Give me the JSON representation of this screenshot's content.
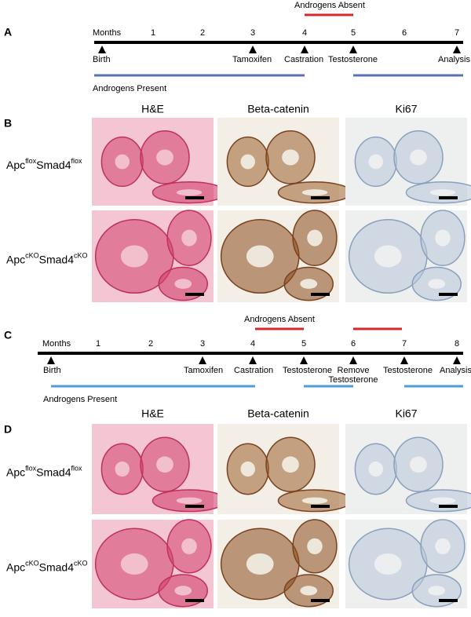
{
  "panels": {
    "a": {
      "label": "A",
      "annotation": "Androgens Absent",
      "axis_label": "Months",
      "months": [
        "1",
        "2",
        "3",
        "4",
        "5",
        "6",
        "7"
      ],
      "events": [
        "Birth",
        "Tamoxifen",
        "Castration",
        "Testosterone",
        "Analysis"
      ],
      "footer": "Androgens Present"
    },
    "b": {
      "label": "B",
      "columns": [
        "H&E",
        "Beta-catenin",
        "Ki67"
      ],
      "rows": [
        {
          "gene1": "Apc",
          "sup1": "flox",
          "gene2": "Smad4",
          "sup2": "flox"
        },
        {
          "gene1": "Apc",
          "sup1": "cKO",
          "gene2": "Smad4",
          "sup2": "cKO"
        }
      ]
    },
    "c": {
      "label": "C",
      "annotation": "Androgens Absent",
      "axis_label": "Months",
      "months": [
        "1",
        "2",
        "3",
        "4",
        "5",
        "6",
        "7",
        "8"
      ],
      "events": [
        "Birth",
        "Tamoxifen",
        "Castration",
        "Testosterone",
        [
          "Remove",
          "Testosterone"
        ],
        "Testosterone",
        "Analysis"
      ],
      "footer": "Androgens Present"
    },
    "d": {
      "label": "D",
      "columns": [
        "H&E",
        "Beta-catenin",
        "Ki67"
      ],
      "rows": [
        {
          "gene1": "Apc",
          "sup1": "flox",
          "gene2": "Smad4",
          "sup2": "flox"
        },
        {
          "gene1": "Apc",
          "sup1": "cKO",
          "gene2": "Smad4",
          "sup2": "cKO"
        }
      ]
    }
  }
}
